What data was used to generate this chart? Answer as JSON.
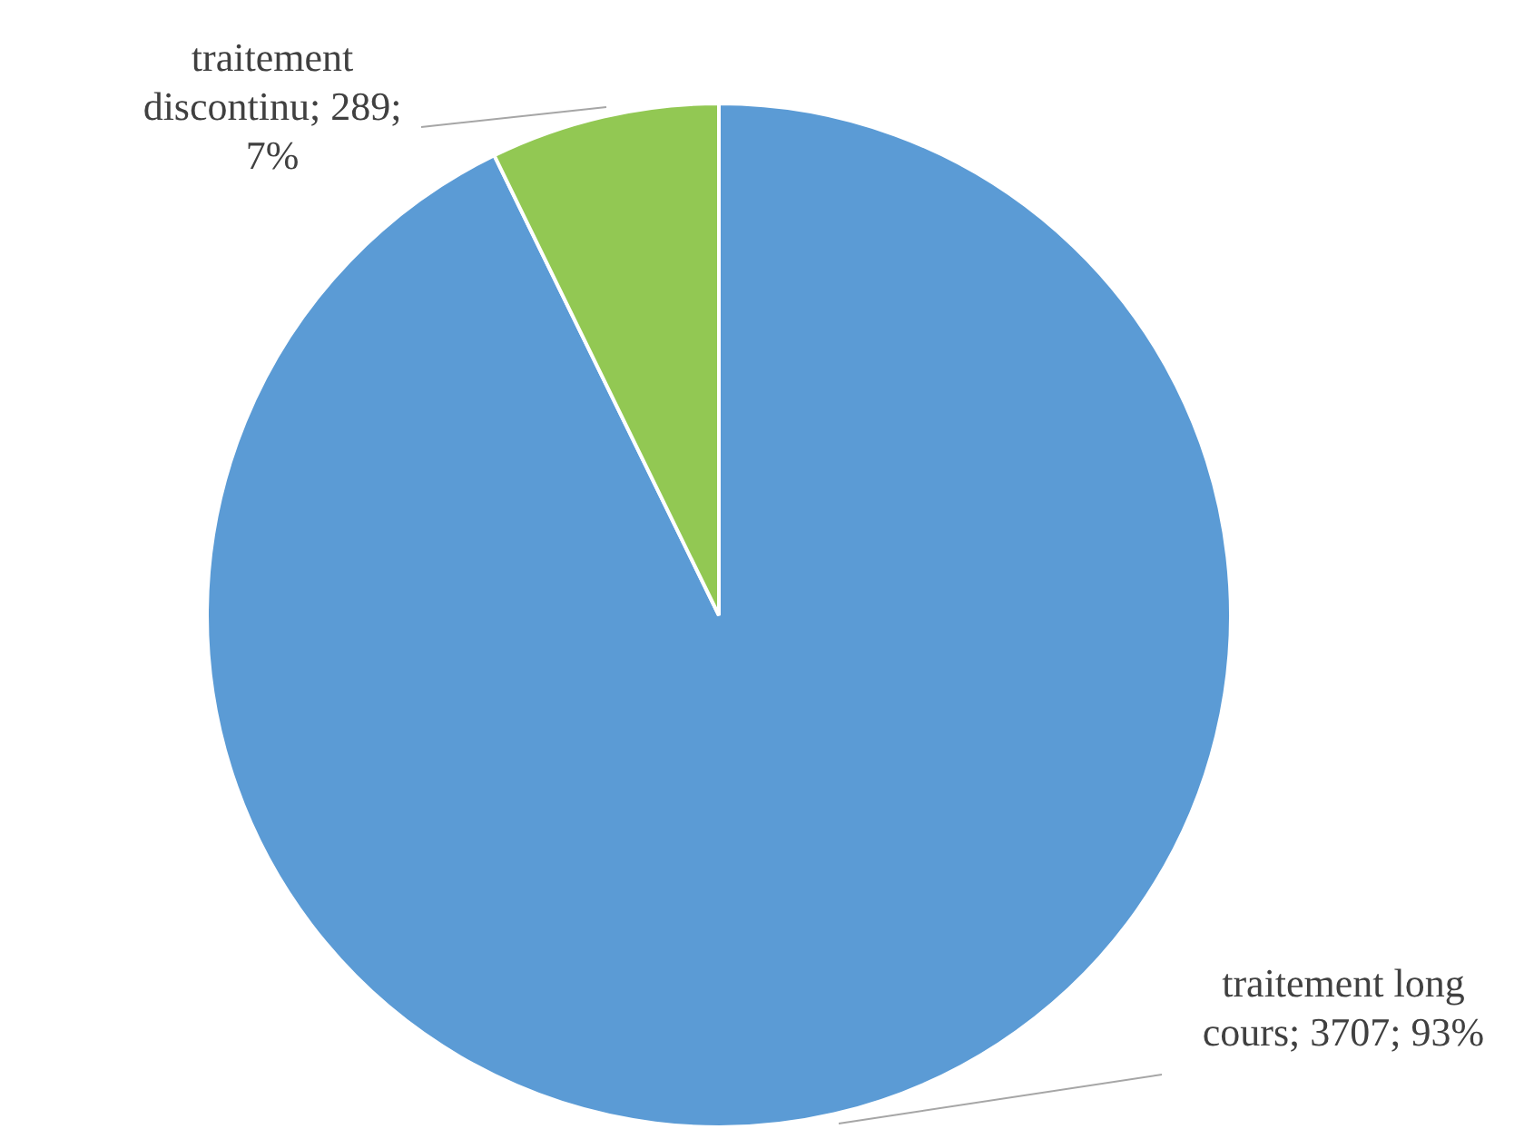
{
  "chart_data": {
    "type": "pie",
    "categories": [
      "traitement long cours",
      "traitement discontinu"
    ],
    "values": [
      3707,
      289
    ],
    "colors": [
      "#5b9bd5",
      "#92c853"
    ],
    "value_labels": [
      "3707; 93%",
      "289; 7%"
    ],
    "legend": false
  }
}
